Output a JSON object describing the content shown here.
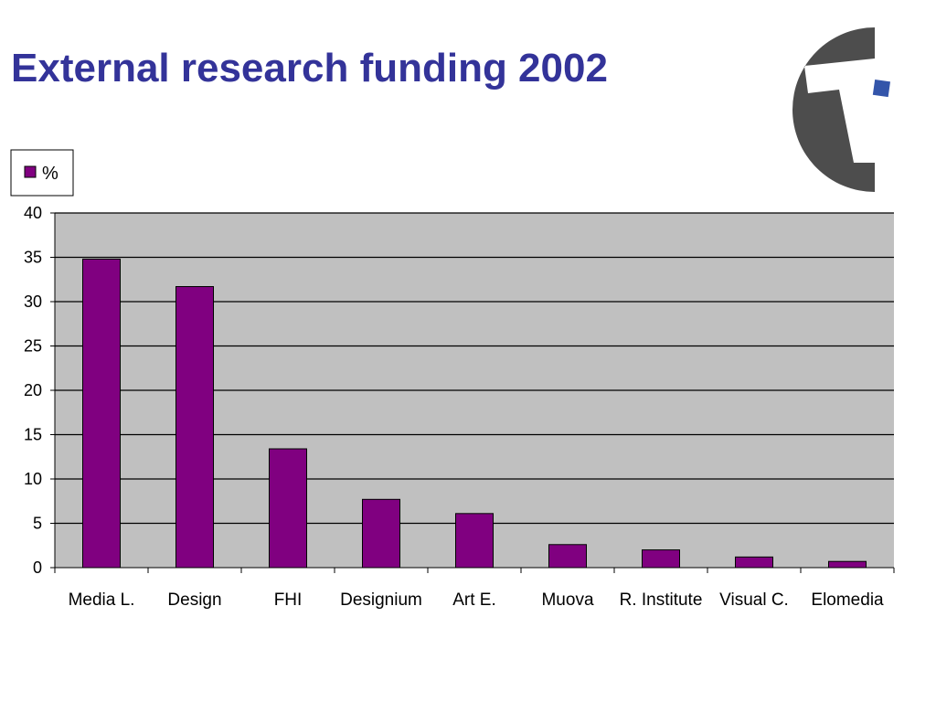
{
  "slide": {
    "title": "External research funding 2002"
  },
  "logo": {
    "icon": "t-letter-logo-icon",
    "colors": {
      "circle": "#4d4d4d",
      "square": "#3355aa"
    }
  },
  "colors": {
    "title": "#333399",
    "bar": "#800080",
    "plot_background": "#c0c0c0",
    "grid": "#000000"
  },
  "chart_data": {
    "type": "bar",
    "title": "",
    "xlabel": "",
    "ylabel": "",
    "categories": [
      "Media L.",
      "Design",
      "FHI",
      "Designium",
      "Art E.",
      "Muova",
      "R. Institute",
      "Visual C.",
      "Elomedia"
    ],
    "series": [
      {
        "name": "%",
        "values": [
          34.8,
          31.7,
          13.4,
          7.7,
          6.1,
          2.6,
          2.0,
          1.2,
          0.7
        ]
      }
    ],
    "ylim": [
      0,
      40
    ],
    "yticks": [
      0,
      5,
      10,
      15,
      20,
      25,
      30,
      35,
      40
    ],
    "grid": true,
    "legend_position": "top-left"
  }
}
